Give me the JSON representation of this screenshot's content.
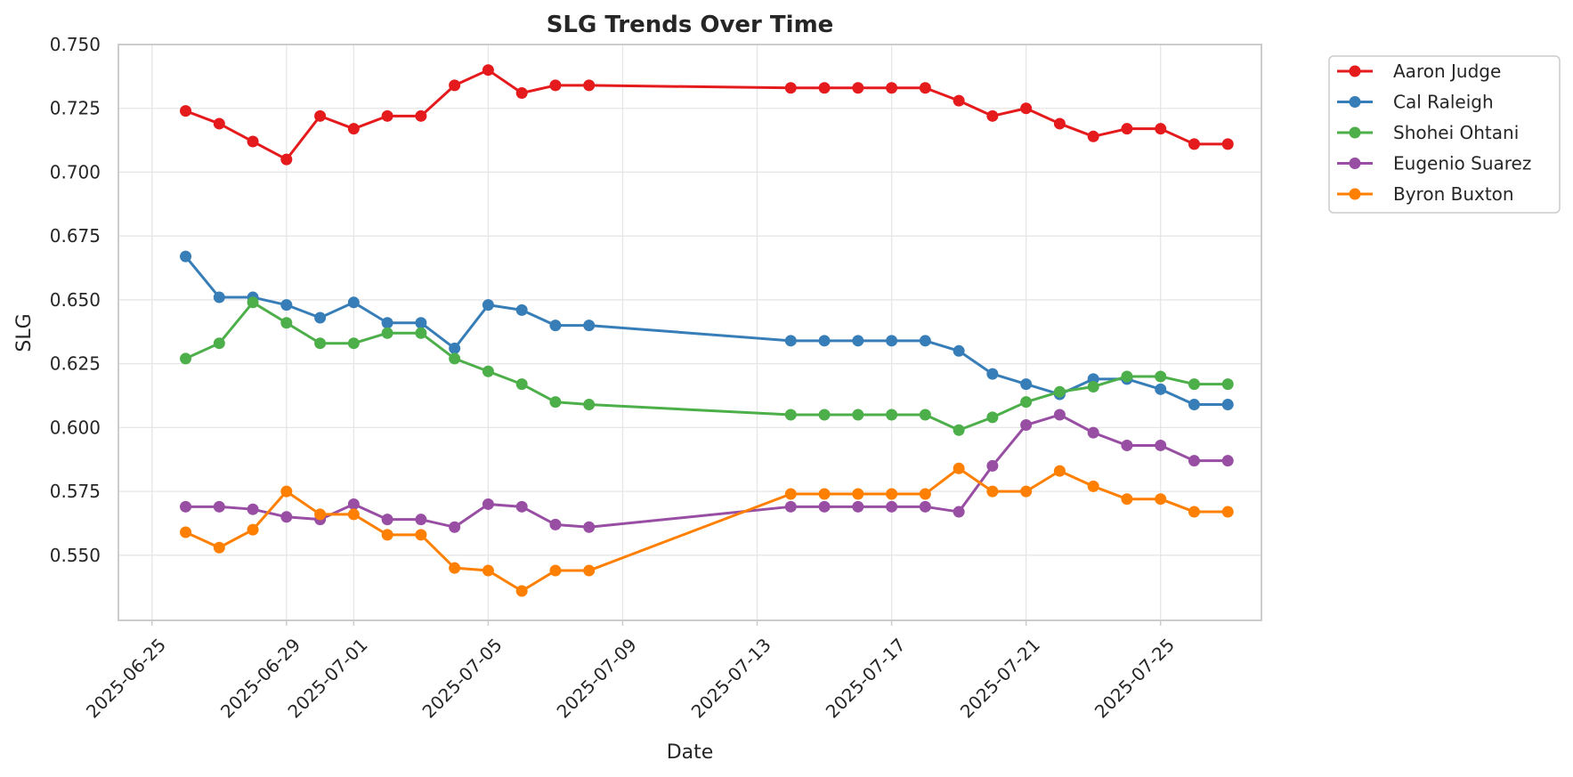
{
  "chart_data": {
    "type": "line",
    "title": "SLG Trends Over Time",
    "xlabel": "Date",
    "ylabel": "SLG",
    "xlim": [
      "2025-06-24",
      "2025-07-28"
    ],
    "ylim": [
      0.5245,
      0.75
    ],
    "grid": true,
    "legend_position": "outside-top-right",
    "x_ticks": [
      "2025-06-25",
      "2025-06-29",
      "2025-07-01",
      "2025-07-05",
      "2025-07-09",
      "2025-07-13",
      "2025-07-17",
      "2025-07-21",
      "2025-07-25"
    ],
    "y_ticks": [
      "0.550",
      "0.575",
      "0.600",
      "0.625",
      "0.650",
      "0.675",
      "0.700",
      "0.725",
      "0.750"
    ],
    "x": [
      "2025-06-26",
      "2025-06-27",
      "2025-06-28",
      "2025-06-29",
      "2025-06-30",
      "2025-07-01",
      "2025-07-02",
      "2025-07-03",
      "2025-07-04",
      "2025-07-05",
      "2025-07-06",
      "2025-07-07",
      "2025-07-08",
      "2025-07-14",
      "2025-07-15",
      "2025-07-16",
      "2025-07-17",
      "2025-07-18",
      "2025-07-19",
      "2025-07-20",
      "2025-07-21",
      "2025-07-22",
      "2025-07-23",
      "2025-07-24",
      "2025-07-25",
      "2025-07-26",
      "2025-07-27"
    ],
    "series": [
      {
        "name": "Aaron Judge",
        "color": "#e41a1c",
        "values": [
          0.724,
          0.719,
          0.712,
          0.705,
          0.722,
          0.717,
          0.722,
          0.722,
          0.734,
          0.74,
          0.731,
          0.734,
          0.734,
          0.733,
          0.733,
          0.733,
          0.733,
          0.733,
          0.728,
          0.722,
          0.725,
          0.719,
          0.714,
          0.717,
          0.717,
          0.711,
          0.711
        ]
      },
      {
        "name": "Cal Raleigh",
        "color": "#377eb8",
        "values": [
          0.667,
          0.651,
          0.651,
          0.648,
          0.643,
          0.649,
          0.641,
          0.641,
          0.631,
          0.648,
          0.646,
          0.64,
          0.64,
          0.634,
          0.634,
          0.634,
          0.634,
          0.634,
          0.63,
          0.621,
          0.617,
          0.613,
          0.619,
          0.619,
          0.615,
          0.609,
          0.609
        ]
      },
      {
        "name": "Shohei Ohtani",
        "color": "#4daf4a",
        "values": [
          0.627,
          0.633,
          0.649,
          0.641,
          0.633,
          0.633,
          0.637,
          0.637,
          0.627,
          0.622,
          0.617,
          0.61,
          0.609,
          0.605,
          0.605,
          0.605,
          0.605,
          0.605,
          0.599,
          0.604,
          0.61,
          0.614,
          0.616,
          0.62,
          0.62,
          0.617,
          0.617
        ]
      },
      {
        "name": "Eugenio Suarez",
        "color": "#984ea3",
        "values": [
          0.569,
          0.569,
          0.568,
          0.565,
          0.564,
          0.57,
          0.564,
          0.564,
          0.561,
          0.57,
          0.569,
          0.562,
          0.561,
          0.569,
          0.569,
          0.569,
          0.569,
          0.569,
          0.567,
          0.585,
          0.601,
          0.605,
          0.598,
          0.593,
          0.593,
          0.587,
          0.587
        ]
      },
      {
        "name": "Byron Buxton",
        "color": "#ff7f00",
        "values": [
          0.559,
          0.553,
          0.56,
          0.575,
          0.566,
          0.566,
          0.558,
          0.558,
          0.545,
          0.544,
          0.536,
          0.544,
          0.544,
          0.574,
          0.574,
          0.574,
          0.574,
          0.574,
          0.584,
          0.575,
          0.575,
          0.583,
          0.577,
          0.572,
          0.572,
          0.567,
          0.567
        ]
      }
    ]
  }
}
